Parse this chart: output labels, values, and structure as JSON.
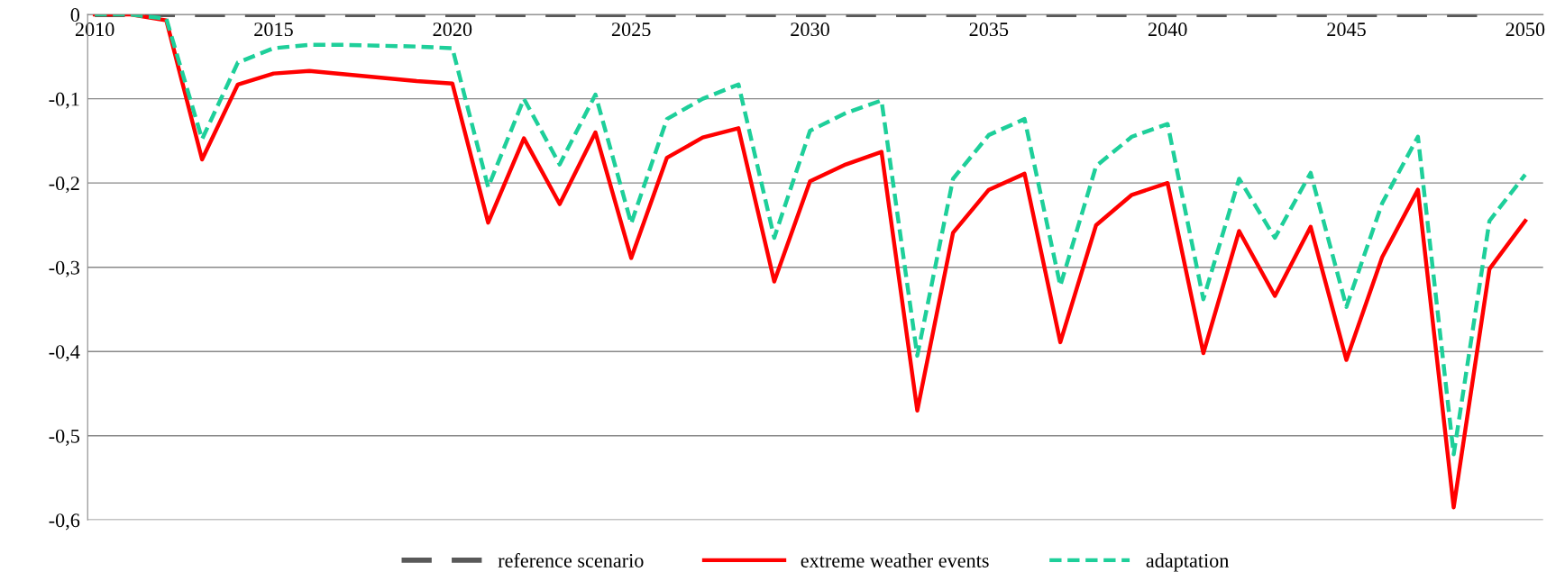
{
  "chart_data": {
    "type": "line",
    "x": [
      2010,
      2011,
      2012,
      2013,
      2014,
      2015,
      2016,
      2017,
      2018,
      2019,
      2020,
      2021,
      2022,
      2023,
      2024,
      2025,
      2026,
      2027,
      2028,
      2029,
      2030,
      2031,
      2032,
      2033,
      2034,
      2035,
      2036,
      2037,
      2038,
      2039,
      2040,
      2041,
      2042,
      2043,
      2044,
      2045,
      2046,
      2047,
      2048,
      2049,
      2050
    ],
    "series": [
      {
        "name": "reference scenario",
        "color": "#595959",
        "line_style": "dashed",
        "values": [
          0,
          0,
          0,
          0,
          0,
          0,
          0,
          0,
          0,
          0,
          0,
          0,
          0,
          0,
          0,
          0,
          0,
          0,
          0,
          0,
          0,
          0,
          0,
          0,
          0,
          0,
          0,
          0,
          0,
          0,
          0,
          0,
          0,
          0,
          0,
          0,
          0,
          0,
          0,
          0,
          null
        ]
      },
      {
        "name": "extreme weather events",
        "color": "#ff0000",
        "line_style": "solid",
        "values": [
          0,
          0,
          -0.007,
          -0.172,
          -0.083,
          -0.07,
          -0.067,
          -0.071,
          -0.075,
          -0.079,
          -0.082,
          -0.247,
          -0.147,
          -0.225,
          -0.14,
          -0.289,
          -0.17,
          -0.146,
          -0.135,
          -0.317,
          -0.198,
          -0.178,
          -0.163,
          -0.47,
          -0.259,
          -0.208,
          -0.189,
          -0.389,
          -0.25,
          -0.214,
          -0.2,
          -0.402,
          -0.257,
          -0.334,
          -0.252,
          -0.41,
          -0.288,
          -0.208,
          -0.585,
          -0.302,
          -0.245
        ]
      },
      {
        "name": "adaptation",
        "color": "#1ecf9a",
        "line_style": "dotted",
        "values": [
          0,
          0,
          -0.005,
          -0.148,
          -0.057,
          -0.04,
          -0.036,
          -0.036,
          -0.037,
          -0.038,
          -0.04,
          -0.205,
          -0.1,
          -0.178,
          -0.095,
          -0.248,
          -0.124,
          -0.1,
          -0.083,
          -0.265,
          -0.138,
          -0.117,
          -0.102,
          -0.405,
          -0.195,
          -0.143,
          -0.124,
          -0.322,
          -0.18,
          -0.145,
          -0.13,
          -0.338,
          -0.195,
          -0.265,
          -0.188,
          -0.347,
          -0.224,
          -0.145,
          -0.522,
          -0.245,
          -0.19
        ]
      }
    ],
    "xlim": [
      2009.8,
      2050.5
    ],
    "xticks": [
      2010,
      2015,
      2020,
      2025,
      2030,
      2035,
      2040,
      2045,
      2050
    ],
    "ylim": [
      -0.6,
      0
    ],
    "yticks": [
      {
        "value": -0.6,
        "label": "-0,6"
      },
      {
        "value": -0.5,
        "label": "-0,5"
      },
      {
        "value": -0.4,
        "label": "-0,4"
      },
      {
        "value": -0.3,
        "label": "-0,3"
      },
      {
        "value": -0.2,
        "label": "-0,2"
      },
      {
        "value": -0.1,
        "label": "-0,1"
      },
      0
    ],
    "grid": "y",
    "legend": "bottom",
    "marker": "none"
  }
}
